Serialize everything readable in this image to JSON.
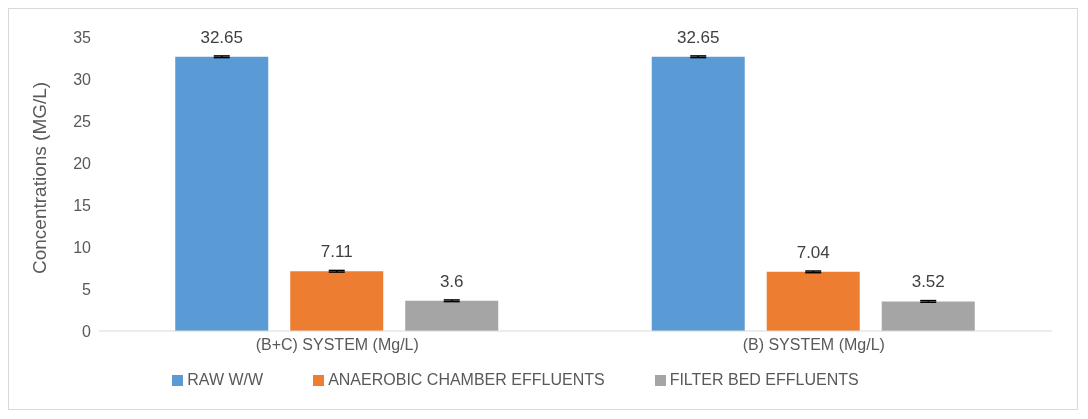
{
  "chart_data": {
    "type": "bar",
    "ylabel": "Concentrations (MG/L)",
    "categories": [
      "(B+C) SYSTEM (Mg/L)",
      "(B) SYSTEM (Mg/L)"
    ],
    "series": [
      {
        "name": "RAW W/W",
        "color": "#5b9bd5",
        "values": [
          32.65,
          32.65
        ],
        "errors": [
          0.1,
          0.1
        ]
      },
      {
        "name": "ANAEROBIC CHAMBER EFFLUENTS",
        "color": "#ed7d31",
        "values": [
          7.11,
          7.04
        ],
        "errors": [
          0.1,
          0.1
        ]
      },
      {
        "name": "FILTER BED EFFLUENTS",
        "color": "#a5a5a5",
        "values": [
          3.6,
          3.52
        ],
        "errors": [
          0.1,
          0.1
        ]
      }
    ],
    "ylim": [
      0,
      35
    ],
    "yticks": [
      0,
      5,
      10,
      15,
      20,
      25,
      30,
      35
    ],
    "grid": false,
    "legend": "bottom",
    "data_labels": true
  }
}
